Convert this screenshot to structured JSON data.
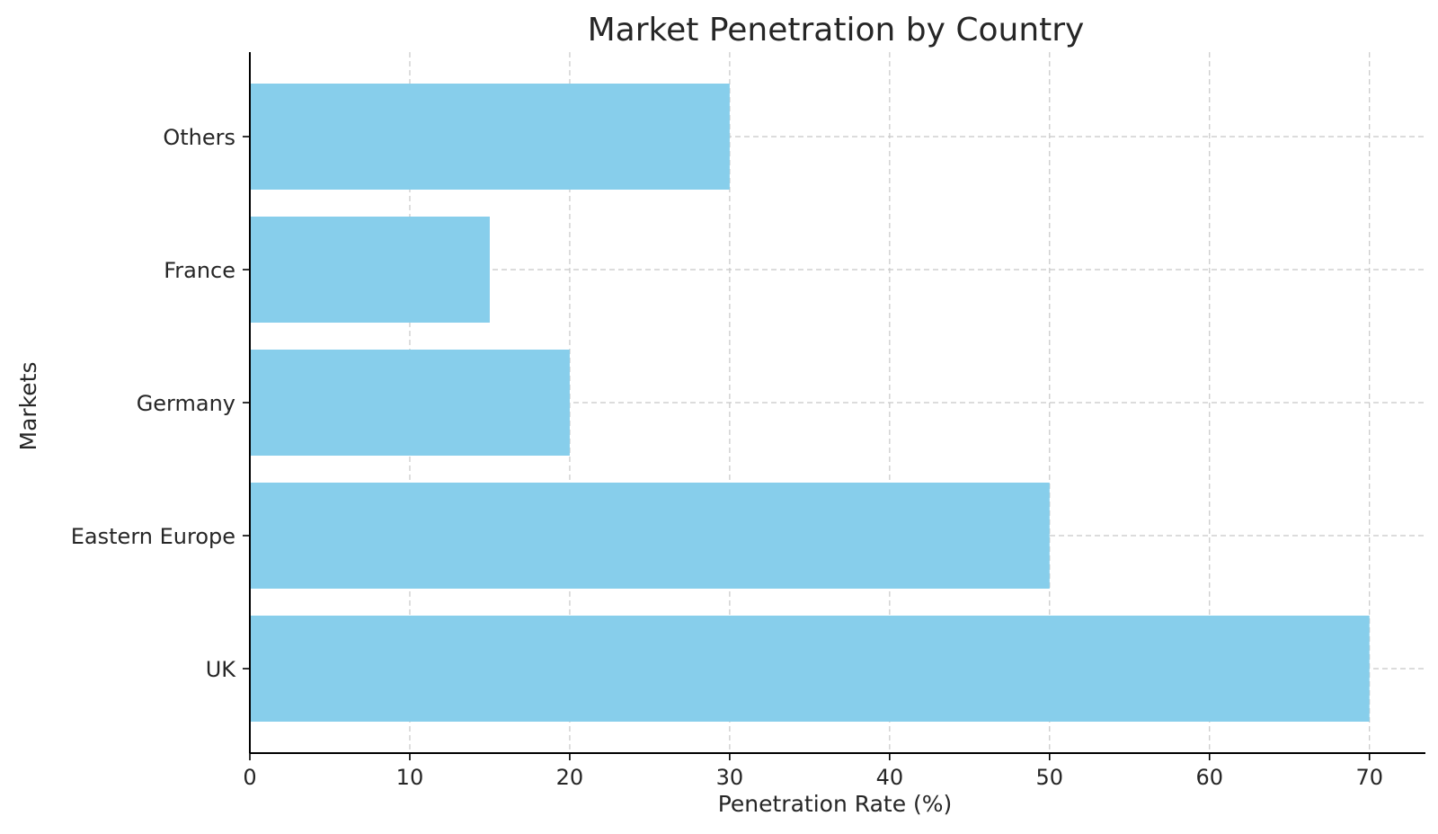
{
  "chart_data": {
    "type": "bar",
    "orientation": "horizontal",
    "title": "Market Penetration by Country",
    "xlabel": "Penetration Rate (%)",
    "ylabel": "Markets",
    "categories": [
      "UK",
      "Eastern Europe",
      "Germany",
      "France",
      "Others"
    ],
    "values": [
      70,
      50,
      20,
      15,
      30
    ],
    "xlim": [
      0,
      73.5
    ],
    "xticks": [
      0,
      10,
      20,
      30,
      40,
      50,
      60,
      70
    ],
    "grid": true,
    "bar_color": "#87ceeb",
    "legend": "none"
  }
}
